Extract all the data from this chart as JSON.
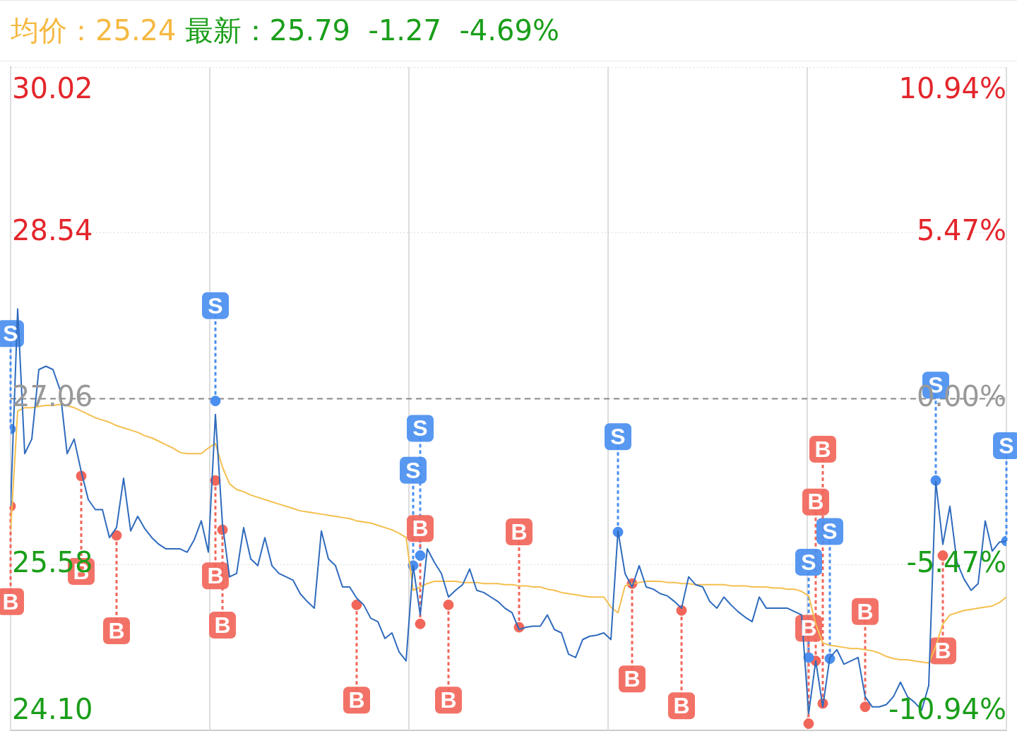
{
  "chart_data": {
    "type": "line",
    "title": "均价：25.24",
    "subtitle": "最新：25.79  -1.27  -4.69%",
    "categories": [
      null,
      null,
      null,
      null,
      null,
      null,
      null,
      null,
      null,
      null,
      null,
      null,
      null,
      null,
      null,
      null,
      null,
      null,
      null,
      null,
      null,
      null,
      null,
      null,
      null,
      null,
      null,
      null,
      null,
      null,
      null,
      null,
      null,
      null,
      null,
      null,
      null,
      null,
      null,
      null,
      null,
      null,
      null,
      null,
      null,
      null,
      null,
      null,
      null,
      null,
      null,
      null,
      null,
      null,
      null,
      null,
      null,
      null,
      null,
      null,
      null,
      null,
      null,
      null,
      null,
      null,
      null,
      null,
      null,
      null,
      null,
      null,
      null,
      null,
      null,
      null,
      null,
      null,
      null,
      null,
      null,
      null,
      null,
      null,
      null,
      null,
      null,
      null,
      null,
      null,
      null,
      null,
      null,
      null,
      null,
      null,
      null,
      null,
      null,
      null,
      null,
      null,
      null,
      null,
      null,
      null,
      null,
      null,
      null,
      null,
      null,
      null,
      null,
      null,
      null,
      null,
      null,
      null,
      null,
      null,
      null,
      null,
      null,
      null,
      null,
      null,
      null,
      null,
      null,
      null,
      null,
      null,
      null,
      null,
      null,
      null,
      null,
      null,
      null,
      null,
      null,
      null
    ],
    "ylim": [
      24.1,
      30.02
    ],
    "yticks": [
      {
        "value": 24.1,
        "label": "24.10"
      },
      {
        "value": 25.58,
        "label": "25.58"
      },
      {
        "value": 27.06,
        "label": "27.06"
      },
      {
        "value": 28.54,
        "label": "28.54"
      },
      {
        "value": 30.02,
        "label": "30.02"
      }
    ],
    "y2lim": [
      -10.94,
      10.94
    ],
    "y2ticks": [
      {
        "value": -10.94,
        "label": "-10.94%"
      },
      {
        "value": -5.47,
        "label": "-5.47%"
      },
      {
        "value": 0,
        "label": "0.00%"
      },
      {
        "value": 5.47,
        "label": "5.47%"
      },
      {
        "value": 10.94,
        "label": "10.94%"
      }
    ],
    "tick_labels": "y",
    "grid": true,
    "legend": false,
    "marker": "none",
    "line_style": "solid",
    "ref_lines": [
      {
        "axis": "y",
        "value": 27.06,
        "color": "#888888",
        "line_style": "dashed"
      }
    ],
    "series": [
      {
        "color": "#2f6bbd",
        "values": [
          26.1,
          27.86,
          26.57,
          26.7,
          27.32,
          27.35,
          27.32,
          27.14,
          26.57,
          26.7,
          26.41,
          26.16,
          26.07,
          26.07,
          25.82,
          25.91,
          26.35,
          25.88,
          26.01,
          25.9,
          25.82,
          25.76,
          25.72,
          25.72,
          25.72,
          25.69,
          25.8,
          25.97,
          25.69,
          26.92,
          25.94,
          25.47,
          25.5,
          25.91,
          25.63,
          25.57,
          25.82,
          25.57,
          25.5,
          25.47,
          25.44,
          25.32,
          25.25,
          25.19,
          25.88,
          25.63,
          25.57,
          25.38,
          25.38,
          25.28,
          25.22,
          25.1,
          25.07,
          24.92,
          24.97,
          24.8,
          24.72,
          25.57,
          25.13,
          25.72,
          25.6,
          25.5,
          25.29,
          25.35,
          25.4,
          25.54,
          25.35,
          25.33,
          25.29,
          25.25,
          25.19,
          25.15,
          25.0,
          25.02,
          25.03,
          25.03,
          25.13,
          25.0,
          24.97,
          24.78,
          24.75,
          24.91,
          24.94,
          24.95,
          24.97,
          24.91,
          25.88,
          25.5,
          25.38,
          25.57,
          25.38,
          25.36,
          25.32,
          25.3,
          25.25,
          25.19,
          25.47,
          25.4,
          25.38,
          25.25,
          25.19,
          25.29,
          25.22,
          25.16,
          25.11,
          25.07,
          25.29,
          25.19,
          25.19,
          25.19,
          25.19,
          25.16,
          25.13,
          24.25,
          24.72,
          24.31,
          24.75,
          24.82,
          24.69,
          24.72,
          24.75,
          24.4,
          24.31,
          24.31,
          24.33,
          24.4,
          24.53,
          24.4,
          24.35,
          24.28,
          24.5,
          26.32,
          25.76,
          26.1,
          25.6,
          25.45,
          25.35,
          25.41,
          25.97,
          25.7,
          25.78,
          25.79
        ]
      },
      {
        "color": "#f5bf4f",
        "values": [
          25.88,
          26.95,
          26.98,
          26.98,
          26.99,
          27.0,
          27.0,
          27.01,
          27.0,
          26.98,
          26.95,
          26.92,
          26.89,
          26.87,
          26.85,
          26.82,
          26.8,
          26.78,
          26.76,
          26.73,
          26.71,
          26.68,
          26.65,
          26.62,
          26.58,
          26.57,
          26.57,
          26.57,
          26.62,
          26.66,
          26.45,
          26.3,
          26.25,
          26.23,
          26.2,
          26.18,
          26.16,
          26.14,
          26.12,
          26.1,
          26.08,
          26.06,
          26.05,
          26.04,
          26.03,
          26.02,
          26.01,
          26.0,
          25.99,
          25.97,
          25.96,
          25.95,
          25.93,
          25.91,
          25.89,
          25.86,
          25.82,
          25.35,
          25.38,
          25.41,
          25.43,
          25.43,
          25.43,
          25.43,
          25.42,
          25.42,
          25.42,
          25.41,
          25.41,
          25.41,
          25.4,
          25.4,
          25.39,
          25.39,
          25.38,
          25.38,
          25.36,
          25.35,
          25.33,
          25.32,
          25.31,
          25.3,
          25.29,
          25.29,
          25.29,
          25.2,
          25.15,
          25.39,
          25.41,
          25.42,
          25.43,
          25.43,
          25.43,
          25.42,
          25.42,
          25.41,
          25.41,
          25.4,
          25.4,
          25.4,
          25.4,
          25.4,
          25.39,
          25.39,
          25.39,
          25.38,
          25.38,
          25.38,
          25.37,
          25.37,
          25.36,
          25.36,
          25.34,
          25.3,
          25.05,
          24.88,
          24.86,
          24.85,
          24.84,
          24.83,
          24.83,
          24.82,
          24.81,
          24.79,
          24.76,
          24.74,
          24.73,
          24.73,
          24.72,
          24.71,
          24.7,
          24.85,
          25.05,
          25.13,
          25.15,
          25.17,
          25.18,
          25.19,
          25.2,
          25.21,
          25.24,
          25.29
        ]
      },
      {
        "type": "scatter",
        "color": "#4a8ff0",
        "marker": "circle",
        "values": [
          26.79,
          null,
          null,
          null,
          null,
          null,
          null,
          null,
          null,
          null,
          null,
          null,
          null,
          null,
          null,
          null,
          null,
          null,
          null,
          null,
          null,
          null,
          null,
          null,
          null,
          null,
          null,
          null,
          null,
          27.04,
          null,
          null,
          null,
          null,
          null,
          null,
          null,
          null,
          null,
          null,
          null,
          null,
          null,
          null,
          null,
          null,
          null,
          null,
          null,
          null,
          null,
          null,
          null,
          null,
          null,
          null,
          null,
          25.57,
          25.66,
          null,
          null,
          null,
          null,
          null,
          null,
          null,
          null,
          null,
          null,
          null,
          null,
          null,
          null,
          null,
          null,
          null,
          null,
          null,
          null,
          null,
          null,
          null,
          null,
          null,
          null,
          null,
          25.87,
          null,
          null,
          null,
          null,
          null,
          null,
          null,
          null,
          null,
          null,
          null,
          null,
          null,
          null,
          null,
          null,
          null,
          null,
          null,
          null,
          null,
          null,
          null,
          null,
          null,
          null,
          24.75,
          null,
          null,
          24.74,
          null,
          null,
          null,
          null,
          null,
          null,
          null,
          null,
          null,
          null,
          null,
          null,
          null,
          null,
          26.33,
          null,
          null,
          null,
          null,
          null,
          null,
          null,
          null,
          null,
          25.79
        ]
      },
      {
        "type": "scatter",
        "color": "#f2665a",
        "marker": "circle",
        "values": [
          26.1,
          null,
          null,
          null,
          null,
          null,
          null,
          null,
          null,
          null,
          26.37,
          null,
          null,
          null,
          null,
          25.84,
          null,
          null,
          null,
          null,
          null,
          null,
          null,
          null,
          null,
          null,
          null,
          null,
          null,
          26.33,
          25.89,
          null,
          null,
          null,
          null,
          null,
          null,
          null,
          null,
          null,
          null,
          null,
          null,
          null,
          null,
          null,
          null,
          null,
          null,
          25.22,
          null,
          null,
          null,
          null,
          null,
          null,
          null,
          null,
          25.05,
          null,
          null,
          null,
          25.22,
          null,
          null,
          null,
          null,
          null,
          null,
          null,
          null,
          null,
          25.02,
          null,
          null,
          null,
          null,
          null,
          null,
          null,
          null,
          null,
          null,
          null,
          null,
          null,
          null,
          null,
          25.41,
          null,
          null,
          null,
          null,
          null,
          null,
          25.17,
          null,
          null,
          null,
          null,
          null,
          null,
          null,
          null,
          null,
          null,
          null,
          null,
          null,
          null,
          null,
          null,
          null,
          24.16,
          24.72,
          24.34,
          null,
          null,
          null,
          null,
          null,
          24.31,
          null,
          null,
          null,
          null,
          null,
          null,
          null,
          null,
          null,
          null,
          25.66,
          null,
          null,
          null,
          null,
          null,
          null,
          null,
          null,
          null
        ]
      }
    ],
    "annotations": [
      {
        "text": "S",
        "y": 26.79
      },
      {
        "text": "S",
        "y": 27.04
      },
      {
        "text": "S",
        "y": 25.57
      },
      {
        "text": "S",
        "y": 25.66
      },
      {
        "text": "S",
        "y": 25.87
      },
      {
        "text": "S",
        "y": 24.75
      },
      {
        "text": "S",
        "y": 24.74
      },
      {
        "text": "S",
        "y": 26.33
      },
      {
        "text": "S",
        "y": 25.79
      },
      {
        "text": "B",
        "y": 26.1
      },
      {
        "text": "B",
        "y": 26.37
      },
      {
        "text": "B",
        "y": 25.84
      },
      {
        "text": "B",
        "y": 26.33
      },
      {
        "text": "B",
        "y": 25.89
      },
      {
        "text": "B",
        "y": 25.22
      },
      {
        "text": "B",
        "y": 25.05
      },
      {
        "text": "B",
        "y": 25.22
      },
      {
        "text": "B",
        "y": 25.02
      },
      {
        "text": "B",
        "y": 25.41
      },
      {
        "text": "B",
        "y": 25.17
      },
      {
        "text": "B",
        "y": 24.16
      },
      {
        "text": "B",
        "y": 24.72
      },
      {
        "text": "B",
        "y": 24.34
      },
      {
        "text": "B",
        "y": 24.31
      },
      {
        "text": "B",
        "y": 25.66
      }
    ]
  }
}
